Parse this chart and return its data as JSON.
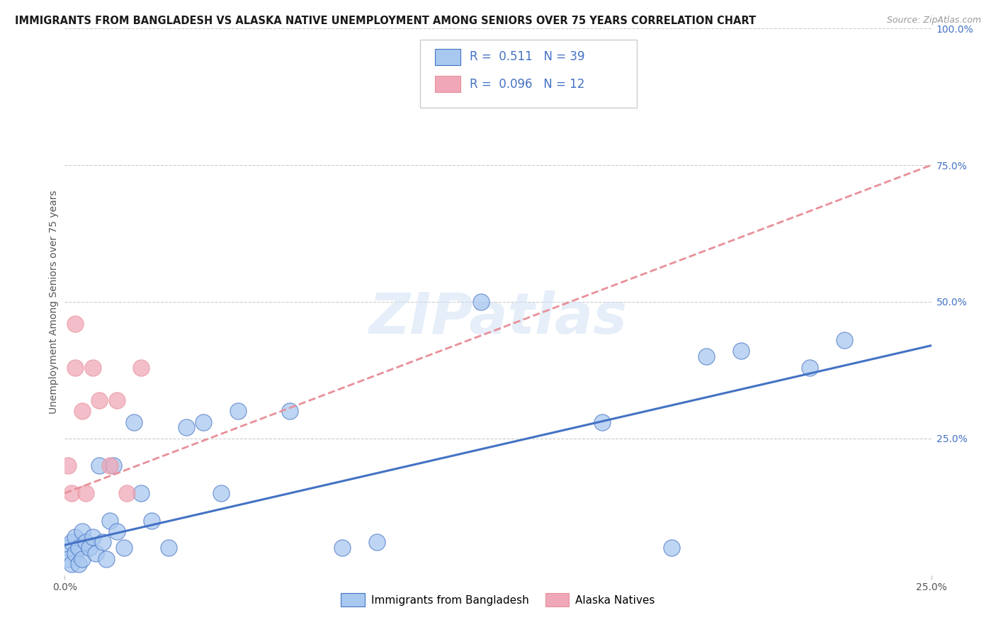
{
  "title": "IMMIGRANTS FROM BANGLADESH VS ALASKA NATIVE UNEMPLOYMENT AMONG SENIORS OVER 75 YEARS CORRELATION CHART",
  "source": "Source: ZipAtlas.com",
  "ylabel_label": "Unemployment Among Seniors over 75 years",
  "legend_bottom": [
    "Immigrants from Bangladesh",
    "Alaska Natives"
  ],
  "R_blue": 0.511,
  "N_blue": 39,
  "R_pink": 0.096,
  "N_pink": 12,
  "blue_color": "#a8c8f0",
  "pink_color": "#f0a8b8",
  "line_blue": "#4472c4",
  "line_pink": "#e8909a",
  "watermark": "ZIPatlas",
  "blue_scatter_x": [
    0.001,
    0.001,
    0.002,
    0.002,
    0.003,
    0.003,
    0.004,
    0.004,
    0.005,
    0.005,
    0.006,
    0.007,
    0.008,
    0.009,
    0.01,
    0.011,
    0.012,
    0.013,
    0.014,
    0.015,
    0.017,
    0.02,
    0.022,
    0.025,
    0.03,
    0.035,
    0.04,
    0.045,
    0.05,
    0.065,
    0.08,
    0.09,
    0.12,
    0.155,
    0.175,
    0.185,
    0.195,
    0.215,
    0.225
  ],
  "blue_scatter_y": [
    0.05,
    0.03,
    0.06,
    0.02,
    0.07,
    0.04,
    0.05,
    0.02,
    0.08,
    0.03,
    0.06,
    0.05,
    0.07,
    0.04,
    0.2,
    0.06,
    0.03,
    0.1,
    0.2,
    0.08,
    0.05,
    0.28,
    0.15,
    0.1,
    0.05,
    0.27,
    0.28,
    0.15,
    0.3,
    0.3,
    0.05,
    0.06,
    0.5,
    0.28,
    0.05,
    0.4,
    0.41,
    0.38,
    0.43
  ],
  "pink_scatter_x": [
    0.001,
    0.002,
    0.003,
    0.003,
    0.005,
    0.006,
    0.008,
    0.01,
    0.013,
    0.015,
    0.018,
    0.022
  ],
  "pink_scatter_y": [
    0.2,
    0.15,
    0.46,
    0.38,
    0.3,
    0.15,
    0.38,
    0.32,
    0.2,
    0.32,
    0.15,
    0.38
  ],
  "xlim": [
    0.0,
    0.25
  ],
  "ylim": [
    0.0,
    1.0
  ],
  "blue_line_x0": 0.0,
  "blue_line_y0": 0.055,
  "blue_line_x1": 0.25,
  "blue_line_y1": 0.42,
  "pink_line_x0": 0.0,
  "pink_line_y0": 0.15,
  "pink_line_x1": 0.25,
  "pink_line_y1": 0.75
}
